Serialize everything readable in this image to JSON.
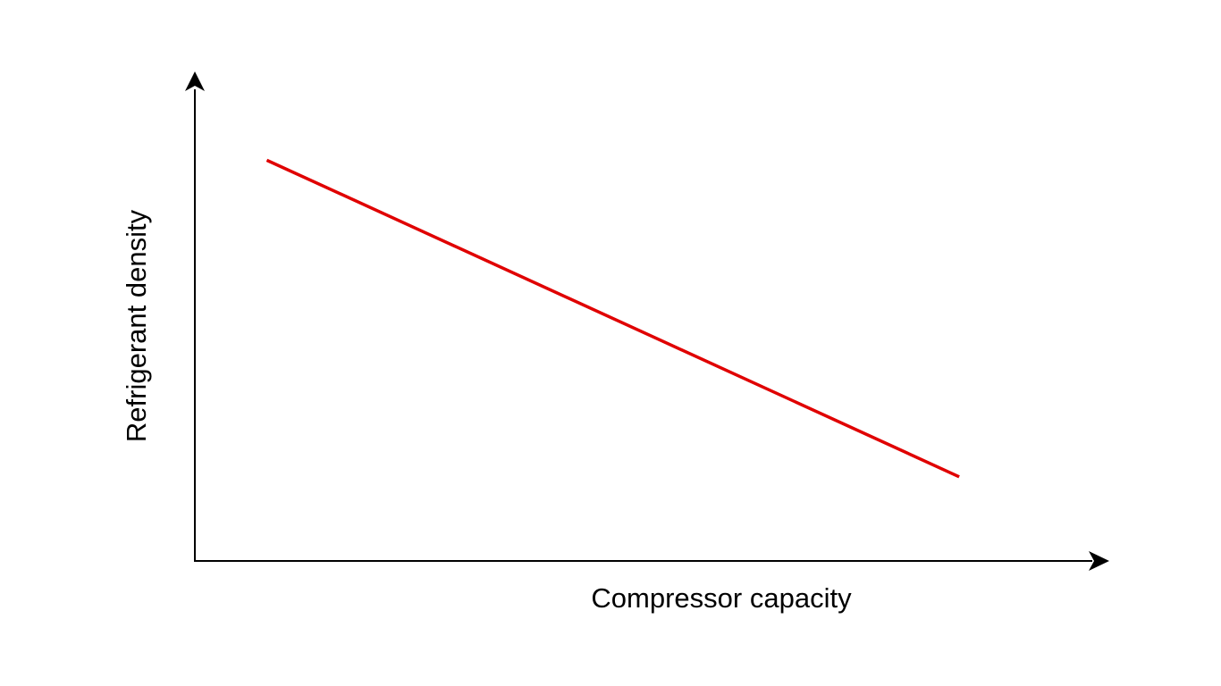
{
  "chart_data": {
    "type": "line",
    "title": "",
    "xlabel": "Compressor capacity",
    "ylabel": "Refrigerant density",
    "xlim": [
      0,
      1
    ],
    "ylim": [
      0,
      1
    ],
    "grid": false,
    "legend": "none",
    "ticks": false,
    "series": [
      {
        "color": "#e00000",
        "points": [
          {
            "x": 0.08,
            "y": 0.85
          },
          {
            "x": 0.85,
            "y": 0.18
          }
        ]
      }
    ]
  }
}
